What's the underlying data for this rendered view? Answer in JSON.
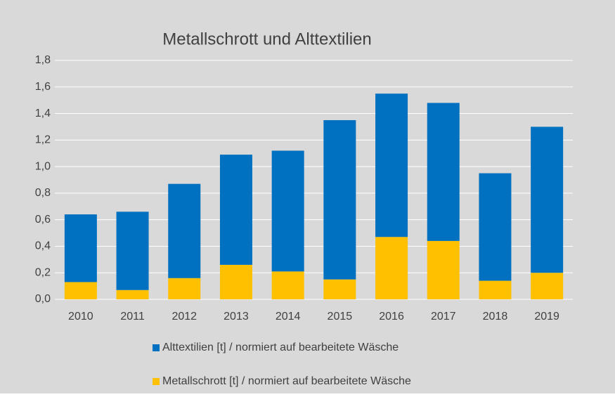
{
  "chart_data": {
    "type": "stacked_bar",
    "title": "Metallschrott und Alttextilien",
    "categories": [
      "2010",
      "2011",
      "2012",
      "2013",
      "2014",
      "2015",
      "2016",
      "2017",
      "2018",
      "2019"
    ],
    "series": [
      {
        "name": "Metallschrott [t] / normiert auf bearbeitete Wäsche",
        "color": "#ffc000",
        "values": [
          0.13,
          0.07,
          0.16,
          0.26,
          0.21,
          0.15,
          0.47,
          0.44,
          0.14,
          0.2
        ]
      },
      {
        "name": "Alttextilien [t] / normiert auf bearbeitete Wäsche",
        "color": "#0070c0",
        "values": [
          0.51,
          0.59,
          0.71,
          0.83,
          0.91,
          1.2,
          1.08,
          1.04,
          0.81,
          1.1
        ]
      }
    ],
    "ylim": [
      0,
      1.8
    ],
    "yticks": [
      {
        "value": 0,
        "label": "0,0"
      },
      {
        "value": 0.2,
        "label": "0,2"
      },
      {
        "value": 0.4,
        "label": "0,4"
      },
      {
        "value": 0.6,
        "label": "0,6"
      },
      {
        "value": 0.8,
        "label": "0,8"
      },
      {
        "value": 1,
        "label": "1,0"
      },
      {
        "value": 1.2,
        "label": "1,2"
      },
      {
        "value": 1.4,
        "label": "1,4"
      },
      {
        "value": 1.6,
        "label": "1,6"
      },
      {
        "value": 1.8,
        "label": "1,8"
      }
    ],
    "grid": true
  }
}
